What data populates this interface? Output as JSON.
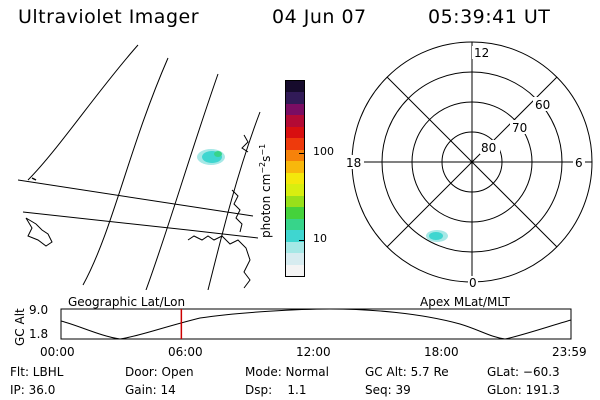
{
  "header": {
    "title": "Ultraviolet Imager",
    "date": "04 Jun 07",
    "time": "05:39:41 UT"
  },
  "colorbar": {
    "unit_label": "photon cm",
    "unit_sup1": "−2",
    "unit_mid": "s",
    "unit_sup2": "−1",
    "ticks": [
      {
        "label": "100",
        "frac": 0.63
      },
      {
        "label": "10",
        "frac": 0.19
      }
    ],
    "colors": [
      "#f4f4f4",
      "#d7ecf0",
      "#a6e8e6",
      "#3fd6d0",
      "#37d48a",
      "#45d23b",
      "#98e01a",
      "#d8ee10",
      "#f4e80c",
      "#f8b80c",
      "#f6820a",
      "#ee3a0c",
      "#d80f10",
      "#b30a35",
      "#7a0d63",
      "#311a57",
      "#160b2c"
    ]
  },
  "polar": {
    "hour_labels": {
      "top": "12",
      "left": "18",
      "right": "6",
      "bottom": "0"
    },
    "lat_labels": [
      "60",
      "70",
      "80"
    ]
  },
  "timeline": {
    "left_title": "Geographic Lat/Lon",
    "right_title": "Apex MLat/MLT",
    "y_axis_label": "GC Alt",
    "y_ticks": [
      "9.0",
      "1.8"
    ],
    "x_ticks": [
      "00:00",
      "06:00",
      "12:00",
      "18:00",
      "23:59"
    ],
    "current_time_frac": 0.236
  },
  "info": {
    "row1": [
      "Flt: LBHL",
      "Door: Open",
      "Mode: Normal",
      "GC Alt: 5.7 Re",
      "GLat: −60.3"
    ],
    "row2": [
      "IP: 36.0",
      "Gain: 14",
      "Dsp:    1.1",
      "Seq: 39",
      "GLon: 191.3"
    ]
  },
  "colors": {
    "marker": "#cc0000",
    "aurora": "#3fd6d0"
  }
}
